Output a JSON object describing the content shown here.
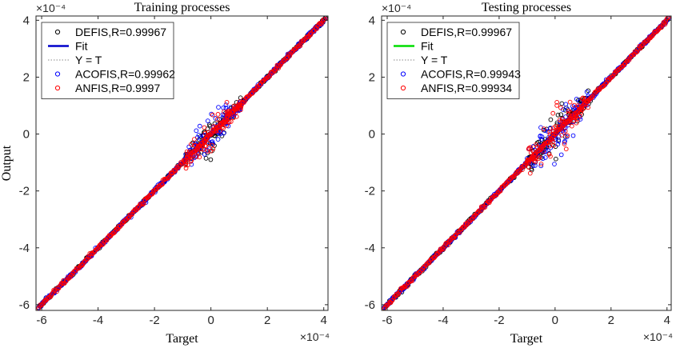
{
  "chart_data": [
    {
      "type": "scatter",
      "title": "Training processes",
      "xlabel": "Target",
      "ylabel": "Output",
      "xlim": [
        -6.2,
        4.15
      ],
      "ylim": [
        -6.2,
        4.15
      ],
      "scale_exponent": "×10⁻⁴",
      "x_ticks": [
        -6,
        -4,
        -2,
        0,
        2,
        4
      ],
      "y_ticks": [
        -6,
        -4,
        -2,
        0,
        2,
        4
      ],
      "legend_position": "top-left",
      "grid": false,
      "series": [
        {
          "name": "DEFIS,R=0.99967",
          "marker": "circle",
          "color": "#000000",
          "line_x": [
            -6.1,
            4.05
          ],
          "line_y": [
            -6.1,
            4.05
          ],
          "scatter_band": [
            -0.9,
            1.1
          ],
          "scatter_spread": 0.35
        },
        {
          "name": "Fit",
          "marker": "line",
          "color": "#0000cc",
          "line_x": [
            -6.1,
            4.05
          ],
          "line_y": [
            -6.1,
            4.05
          ]
        },
        {
          "name": "Y = T",
          "marker": "dotted",
          "color": "#888888",
          "line_x": [
            -6.1,
            4.05
          ],
          "line_y": [
            -6.1,
            4.05
          ]
        },
        {
          "name": "ACOFIS,R=0.99962",
          "marker": "circle",
          "color": "#0000ff",
          "line_x": [
            -6.1,
            4.05
          ],
          "line_y": [
            -6.1,
            4.05
          ],
          "scatter_band": [
            -0.9,
            1.1
          ],
          "scatter_spread": 0.4
        },
        {
          "name": "ANFIS,R=0.9997",
          "marker": "circle",
          "color": "#ff0000",
          "line_x": [
            -6.1,
            4.05
          ],
          "line_y": [
            -6.1,
            4.05
          ],
          "scatter_band": [
            -0.9,
            1.1
          ],
          "scatter_spread": 0.35
        }
      ]
    },
    {
      "type": "scatter",
      "title": "Testing processes",
      "xlabel": "Target",
      "ylabel": "",
      "xlim": [
        -6.2,
        4.15
      ],
      "ylim": [
        -6.2,
        4.15
      ],
      "scale_exponent": "×10⁻⁴",
      "x_ticks": [
        -6,
        -4,
        -2,
        0,
        2,
        4
      ],
      "y_ticks": [
        -6,
        -4,
        -2,
        0,
        2,
        4
      ],
      "legend_position": "top-left",
      "grid": false,
      "series": [
        {
          "name": "DEFIS,R=0.99967",
          "marker": "circle",
          "color": "#000000",
          "line_x": [
            -6.1,
            4.05
          ],
          "line_y": [
            -6.1,
            4.05
          ],
          "scatter_band": [
            -1.0,
            1.2
          ],
          "scatter_spread": 0.5
        },
        {
          "name": "Fit",
          "marker": "line",
          "color": "#00dd00",
          "line_x": [
            -6.1,
            4.05
          ],
          "line_y": [
            -6.1,
            4.05
          ]
        },
        {
          "name": "Y = T",
          "marker": "dotted",
          "color": "#888888",
          "line_x": [
            -6.1,
            4.05
          ],
          "line_y": [
            -6.1,
            4.05
          ]
        },
        {
          "name": "ACOFIS,R=0.99943",
          "marker": "circle",
          "color": "#0000ff",
          "line_x": [
            -6.1,
            4.05
          ],
          "line_y": [
            -6.1,
            4.05
          ],
          "scatter_band": [
            -1.0,
            1.2
          ],
          "scatter_spread": 0.55
        },
        {
          "name": "ANFIS,R=0.99934",
          "marker": "circle",
          "color": "#ff0000",
          "line_x": [
            -6.1,
            4.05
          ],
          "line_y": [
            -6.1,
            4.05
          ],
          "scatter_band": [
            -1.0,
            1.2
          ],
          "scatter_spread": 0.6
        }
      ]
    }
  ]
}
